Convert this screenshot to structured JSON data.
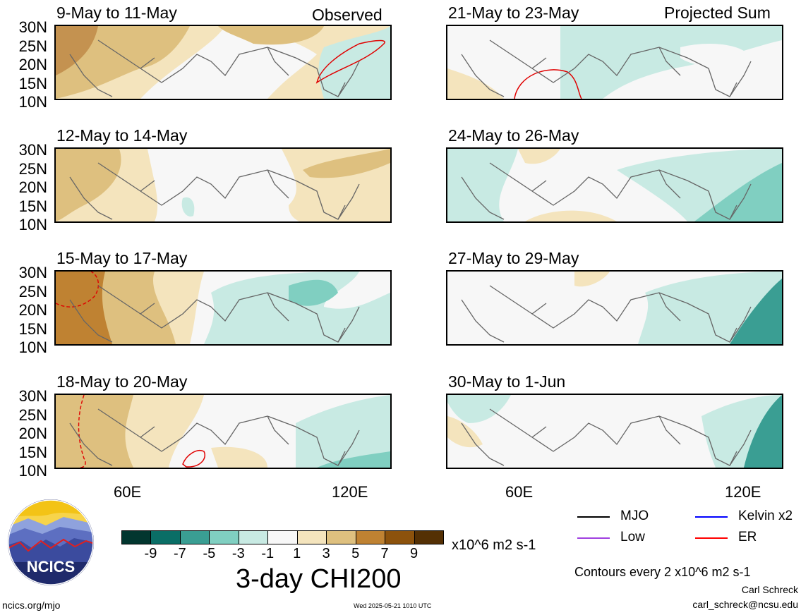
{
  "headers": {
    "left": "Observed",
    "right": "Projected Sum"
  },
  "panels": [
    {
      "title": "9-May to 11-May"
    },
    {
      "title": "12-May to 14-May"
    },
    {
      "title": "15-May to 17-May"
    },
    {
      "title": "18-May to 20-May"
    },
    {
      "title": "21-May to 23-May"
    },
    {
      "title": "24-May to 26-May"
    },
    {
      "title": "27-May to 29-May"
    },
    {
      "title": "30-May to 1-Jun"
    }
  ],
  "axes": {
    "lat_labels": [
      "30N",
      "25N",
      "20N",
      "15N",
      "10N"
    ],
    "lon_labels": [
      "60E",
      "120E"
    ]
  },
  "colorbar": {
    "ticks": [
      "-9",
      "-7",
      "-5",
      "-3",
      "-1",
      "1",
      "3",
      "5",
      "7",
      "9"
    ],
    "colors": [
      "#02362f",
      "#0a6e66",
      "#3a9e93",
      "#80cfc1",
      "#c8eae3",
      "#f7f7f7",
      "#f4e4bd",
      "#dec07f",
      "#bf8232",
      "#8c520c",
      "#543004"
    ],
    "units": "x10^6 m2 s-1",
    "title": "3-day CHI200"
  },
  "legend": {
    "items": [
      {
        "label": "MJO",
        "color": "#000000"
      },
      {
        "label": "Kelvin x2",
        "color": "#0000ff"
      },
      {
        "label": "Low",
        "color": "#a040e0"
      },
      {
        "label": "ER",
        "color": "#ff0000"
      }
    ],
    "contour_note": "Contours every 2 x10^6 m2 s-1"
  },
  "logo": {
    "text": "NCICS"
  },
  "footer": {
    "url": "ncics.org/mjo",
    "timestamp": "Wed 2025-05-21 1010 UTC",
    "author": "Carl Schreck",
    "email": "carl_schreck@ncsu.edu"
  }
}
